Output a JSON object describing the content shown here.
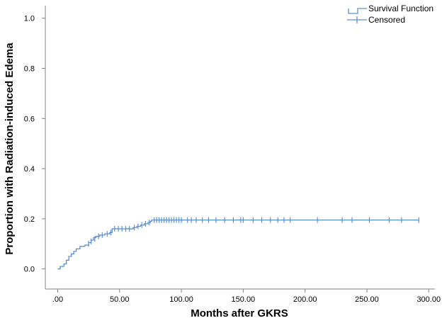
{
  "chart_data": {
    "type": "line",
    "title": "",
    "xlabel": "Months after GKRS",
    "ylabel": "Proportion with Radiation-induced Edema",
    "xlim": [
      -10,
      305
    ],
    "ylim": [
      -0.08,
      1.05
    ],
    "x_ticks": [
      0,
      50,
      100,
      150,
      200,
      250,
      300
    ],
    "x_tick_labels": [
      ".00",
      "50.00",
      "100.00",
      "150.00",
      "200.00",
      "250.00",
      "300.00"
    ],
    "y_ticks": [
      0,
      0.2,
      0.4,
      0.6,
      0.8,
      1.0
    ],
    "y_tick_labels": [
      "0.0",
      "0.2",
      "0.4",
      "0.6",
      "0.8",
      "1.0"
    ],
    "grid": false,
    "legend_position": "top-right",
    "colors": {
      "series": "#5b8fd4",
      "axis": "#7f7f7f"
    },
    "series": [
      {
        "name": "Survival Function",
        "style": "step",
        "x": [
          0,
          2,
          5,
          7,
          9,
          11,
          13,
          15,
          18,
          22,
          25,
          27,
          29,
          31,
          34,
          38,
          42,
          44,
          61,
          64,
          67,
          70,
          73,
          75,
          76,
          292
        ],
        "y": [
          0,
          0.01,
          0.02,
          0.035,
          0.05,
          0.06,
          0.07,
          0.08,
          0.09,
          0.095,
          0.105,
          0.115,
          0.125,
          0.13,
          0.135,
          0.14,
          0.145,
          0.16,
          0.165,
          0.17,
          0.175,
          0.18,
          0.185,
          0.19,
          0.195,
          0.195
        ]
      },
      {
        "name": "Censored",
        "style": "marker-plus",
        "x": [
          25,
          27,
          30,
          33,
          36,
          40,
          43,
          46,
          49,
          52,
          55,
          58,
          62,
          65,
          68,
          71,
          74,
          78,
          80,
          82,
          84,
          86,
          88,
          90,
          92,
          94,
          96,
          98,
          100,
          105,
          108,
          112,
          117,
          122,
          128,
          135,
          142,
          148,
          150,
          158,
          165,
          172,
          178,
          183,
          188,
          210,
          230,
          238,
          252,
          268,
          278,
          292
        ],
        "y": [
          0.1,
          0.11,
          0.12,
          0.13,
          0.135,
          0.14,
          0.145,
          0.16,
          0.16,
          0.16,
          0.16,
          0.16,
          0.165,
          0.17,
          0.175,
          0.18,
          0.185,
          0.195,
          0.195,
          0.195,
          0.195,
          0.195,
          0.195,
          0.195,
          0.195,
          0.195,
          0.195,
          0.195,
          0.195,
          0.195,
          0.195,
          0.195,
          0.195,
          0.195,
          0.195,
          0.195,
          0.195,
          0.195,
          0.195,
          0.195,
          0.195,
          0.195,
          0.195,
          0.195,
          0.195,
          0.195,
          0.195,
          0.195,
          0.195,
          0.195,
          0.195,
          0.195
        ]
      }
    ]
  }
}
